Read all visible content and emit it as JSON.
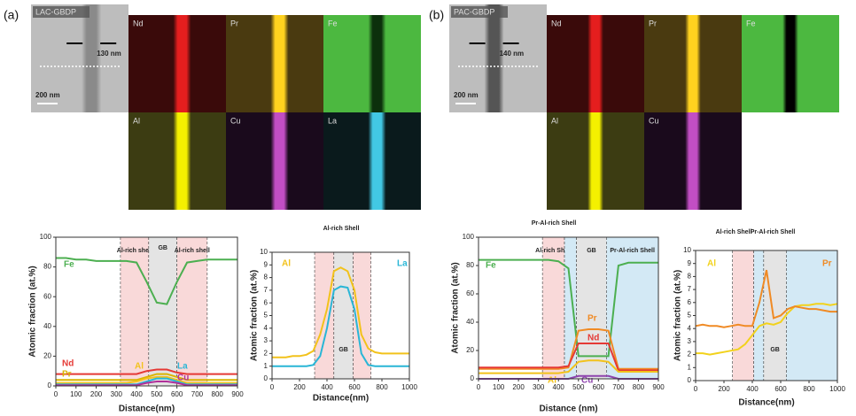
{
  "panels": {
    "a": {
      "label": "(a)",
      "sample": "LAC-GBDP",
      "thickness": "130 nm",
      "scale": "200 nm",
      "maps": [
        "Nd",
        "Pr",
        "Fe",
        "Al",
        "Cu",
        "La"
      ]
    },
    "b": {
      "label": "(b)",
      "sample": "PAC-GBDP",
      "thickness": "140 nm",
      "scale": "200 nm",
      "maps": [
        "Nd",
        "Pr",
        "Fe",
        "Al",
        "Cu"
      ]
    }
  },
  "chart_data": [
    {
      "type": "line",
      "xlabel": "Distance(nm)",
      "ylabel": "Atomic fraction (at.%)",
      "xlim": [
        0,
        900
      ],
      "xticks": [
        0,
        100,
        200,
        300,
        400,
        500,
        600,
        700,
        800,
        900
      ],
      "ylim": [
        0,
        100
      ],
      "yticks": [
        0,
        20,
        40,
        60,
        80,
        100
      ],
      "regions": [
        {
          "start": 320,
          "end": 460,
          "color": "#f9d9d9",
          "label": "Al-rich shell"
        },
        {
          "start": 460,
          "end": 600,
          "color": "#e4e4e4",
          "label": "GB"
        },
        {
          "start": 600,
          "end": 750,
          "color": "#f9d9d9",
          "label": "Al-rich shell"
        }
      ],
      "x": [
        0,
        50,
        100,
        150,
        200,
        250,
        300,
        350,
        400,
        450,
        500,
        550,
        600,
        650,
        700,
        750,
        800,
        850,
        900
      ],
      "series": [
        {
          "name": "Fe",
          "color": "#4caf50",
          "values": [
            86,
            86,
            85,
            85,
            84,
            84,
            84,
            84,
            83,
            70,
            56,
            55,
            70,
            83,
            84,
            85,
            85,
            85,
            85
          ]
        },
        {
          "name": "Nd",
          "color": "#e53935",
          "values": [
            8,
            8,
            8,
            8,
            8,
            8,
            8,
            8,
            8,
            10,
            11,
            11,
            9,
            8,
            8,
            8,
            8,
            8,
            8
          ]
        },
        {
          "name": "Pr",
          "color": "#d9b400",
          "values": [
            4,
            4,
            4,
            4,
            4,
            4,
            4,
            4,
            4,
            6,
            8,
            8,
            6,
            4,
            4,
            4,
            4,
            4,
            4
          ]
        },
        {
          "name": "Al",
          "color": "#f2c21b",
          "values": [
            2,
            2,
            2,
            2,
            2,
            2,
            2,
            2,
            3,
            5,
            6,
            6,
            4,
            2,
            2,
            2,
            2,
            2,
            2
          ]
        },
        {
          "name": "La",
          "color": "#29b6d6",
          "values": [
            1,
            1,
            1,
            1,
            1,
            1,
            1,
            1,
            1,
            3,
            5,
            5,
            3,
            1,
            1,
            1,
            1,
            1,
            1
          ]
        },
        {
          "name": "Cu",
          "color": "#b0309a",
          "values": [
            0.5,
            0.5,
            0.5,
            0.5,
            0.5,
            0.5,
            0.5,
            0.5,
            0.5,
            2,
            3,
            3,
            2,
            0.5,
            0.5,
            0.5,
            0.5,
            0.5,
            0.5
          ]
        }
      ]
    },
    {
      "type": "line",
      "xlabel": "Distance(nm)",
      "ylabel": "Atomic fraction (at.%)",
      "xlim": [
        0,
        1000
      ],
      "xticks": [
        0,
        200,
        400,
        600,
        800,
        1000
      ],
      "ylim": [
        0,
        10
      ],
      "yticks": [
        0,
        1,
        2,
        3,
        4,
        5,
        6,
        7,
        8,
        9,
        10
      ],
      "annotations": [
        "Al-rich Shell"
      ],
      "regions": [
        {
          "start": 310,
          "end": 450,
          "color": "#f9d9d9"
        },
        {
          "start": 450,
          "end": 590,
          "color": "#e4e4e4",
          "label": "GB"
        },
        {
          "start": 590,
          "end": 720,
          "color": "#f9d9d9"
        }
      ],
      "x": [
        0,
        50,
        100,
        150,
        200,
        250,
        300,
        350,
        400,
        450,
        500,
        550,
        600,
        650,
        700,
        750,
        800,
        850,
        900,
        950,
        1000
      ],
      "series": [
        {
          "name": "Al",
          "color": "#f2c21b",
          "values": [
            1.7,
            1.7,
            1.7,
            1.8,
            1.8,
            1.9,
            2.2,
            3.5,
            5.5,
            8.5,
            8.8,
            8.5,
            7,
            3.5,
            2.4,
            2.1,
            2.0,
            2.0,
            2.0,
            2.0,
            2.0
          ]
        },
        {
          "name": "La",
          "color": "#29b6d6",
          "values": [
            1,
            1,
            1,
            1,
            1,
            1,
            1.1,
            1.8,
            4,
            7,
            7.3,
            7.2,
            5.5,
            2,
            1.1,
            1,
            1,
            1,
            1,
            1,
            1
          ]
        }
      ]
    },
    {
      "type": "line",
      "xlabel": "Distance (nm)",
      "ylabel": "Atomic fraction (at.%)",
      "xlim": [
        0,
        900
      ],
      "xticks": [
        0,
        100,
        200,
        300,
        400,
        500,
        600,
        700,
        800,
        900
      ],
      "ylim": [
        0,
        100
      ],
      "yticks": [
        0,
        20,
        40,
        60,
        80,
        100
      ],
      "regions": [
        {
          "start": 320,
          "end": 430,
          "color": "#f9d9d9",
          "label": "Al-rich Shell"
        },
        {
          "start": 430,
          "end": 490,
          "color": "#d3e9f5",
          "label": "Pr-Al-rich Shell"
        },
        {
          "start": 490,
          "end": 640,
          "color": "#e4e4e4",
          "label": "GB"
        },
        {
          "start": 640,
          "end": 900,
          "color": "#d3e9f5",
          "label": "Pr-Al-rich Shell"
        }
      ],
      "x": [
        0,
        50,
        100,
        150,
        200,
        250,
        300,
        350,
        400,
        450,
        500,
        550,
        600,
        650,
        700,
        750,
        800,
        850,
        900
      ],
      "series": [
        {
          "name": "Fe",
          "color": "#4caf50",
          "values": [
            84,
            84,
            84,
            84,
            84,
            84,
            84,
            84,
            83,
            78,
            16,
            16,
            16,
            16,
            80,
            82,
            82,
            82,
            82
          ]
        },
        {
          "name": "Pr",
          "color": "#f08a24",
          "values": [
            7,
            7,
            7,
            7,
            7,
            7,
            7,
            7,
            7,
            8,
            34,
            35,
            35,
            34,
            7,
            7,
            7,
            7,
            7
          ]
        },
        {
          "name": "Nd",
          "color": "#e53935",
          "values": [
            8,
            8,
            8,
            8,
            8,
            8,
            8,
            8,
            8,
            9,
            25,
            25,
            25,
            25,
            6,
            6,
            6,
            6,
            6
          ]
        },
        {
          "name": "Al",
          "color": "#f2c21b",
          "values": [
            4,
            4,
            4,
            4,
            4,
            4,
            4,
            4,
            4,
            5,
            12,
            13,
            13,
            12,
            5,
            5,
            5,
            5,
            5
          ]
        },
        {
          "name": "Cu",
          "color": "#8e44ad",
          "values": [
            0,
            0,
            0,
            0,
            0,
            0,
            0,
            0,
            0,
            0,
            2,
            2,
            2,
            2,
            0,
            0,
            0,
            0,
            0
          ]
        }
      ]
    },
    {
      "type": "line",
      "xlabel": "Distance(nm)",
      "ylabel": "Atomic fraction (at.%)",
      "xlim": [
        0,
        1000
      ],
      "xticks": [
        0,
        200,
        400,
        600,
        800,
        1000
      ],
      "ylim": [
        0,
        10
      ],
      "yticks": [
        0,
        1,
        2,
        3,
        4,
        5,
        6,
        7,
        8,
        9,
        10
      ],
      "regions": [
        {
          "start": 260,
          "end": 410,
          "color": "#f9d9d9",
          "label": "Al-rich Shell"
        },
        {
          "start": 410,
          "end": 480,
          "color": "#d3e9f5",
          "label": "Pr-Al-rich Shell"
        },
        {
          "start": 480,
          "end": 640,
          "color": "#e4e4e4",
          "label": "GB"
        },
        {
          "start": 640,
          "end": 1000,
          "color": "#d3e9f5"
        }
      ],
      "x": [
        0,
        50,
        100,
        150,
        200,
        250,
        300,
        350,
        400,
        450,
        500,
        550,
        600,
        650,
        700,
        750,
        800,
        850,
        900,
        950,
        1000
      ],
      "series": [
        {
          "name": "Al",
          "color": "#f2d21b",
          "values": [
            2.1,
            2.1,
            2.0,
            2.1,
            2.2,
            2.3,
            2.4,
            2.8,
            3.5,
            4.2,
            4.4,
            4.3,
            4.5,
            5.2,
            5.7,
            5.8,
            5.8,
            5.9,
            5.9,
            5.8,
            5.9
          ]
        },
        {
          "name": "Pr",
          "color": "#f08a24",
          "values": [
            4.2,
            4.3,
            4.2,
            4.2,
            4.1,
            4.2,
            4.3,
            4.2,
            4.2,
            6.0,
            8.5,
            4.8,
            5.0,
            5.5,
            5.7,
            5.6,
            5.5,
            5.5,
            5.4,
            5.3,
            5.3
          ]
        }
      ]
    }
  ]
}
